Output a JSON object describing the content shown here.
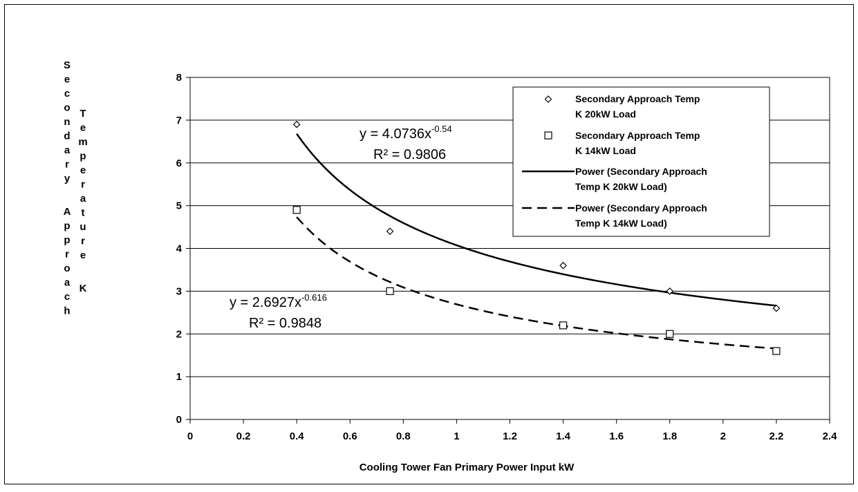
{
  "chart_data": {
    "type": "scatter",
    "xlabel": "Cooling Tower Fan Primary Power Input kW",
    "ylabel_col1": "Secondary Approach",
    "ylabel_col2": "Temperature K",
    "xlim": [
      0,
      2.4
    ],
    "ylim": [
      0,
      8
    ],
    "x_ticks": [
      "0",
      "0.2",
      "0.4",
      "0.6",
      "0.8",
      "1",
      "1.2",
      "1.4",
      "1.6",
      "1.8",
      "2",
      "2.2",
      "2.4"
    ],
    "y_ticks": [
      "0",
      "1",
      "2",
      "3",
      "4",
      "5",
      "6",
      "7",
      "8"
    ],
    "grid": "horizontal",
    "legend_position": "top-right",
    "series": [
      {
        "name_line1": "Secondary Approach Temp",
        "name_line2": "K 20kW Load",
        "marker": "diamond",
        "x": [
          0.4,
          0.75,
          1.4,
          1.8,
          2.2
        ],
        "y": [
          6.9,
          4.4,
          3.6,
          3.0,
          2.6
        ]
      },
      {
        "name_line1": "Secondary Approach Temp",
        "name_line2": "K 14kW Load",
        "marker": "square",
        "x": [
          0.4,
          0.75,
          1.4,
          1.8,
          2.2
        ],
        "y": [
          4.9,
          3.0,
          2.2,
          2.0,
          1.6
        ]
      }
    ],
    "trendlines": [
      {
        "name_line1": "Power (Secondary Approach",
        "name_line2": "Temp   K 20kW Load)",
        "style": "solid",
        "coef": 4.0736,
        "exp": -0.54,
        "x_range": [
          0.4,
          2.2
        ],
        "eq_text": "y = 4.0736x",
        "eq_exp_text": "-0.54",
        "r2_text": "R² = 0.9806"
      },
      {
        "name_line1": "Power (Secondary Approach",
        "name_line2": "Temp   K 14kW Load)",
        "style": "dashed",
        "coef": 2.6927,
        "exp": -0.616,
        "x_range": [
          0.4,
          2.2
        ],
        "eq_text": "y = 2.6927x",
        "eq_exp_text": "-0.616",
        "r2_text": "R² = 0.9848"
      }
    ]
  }
}
